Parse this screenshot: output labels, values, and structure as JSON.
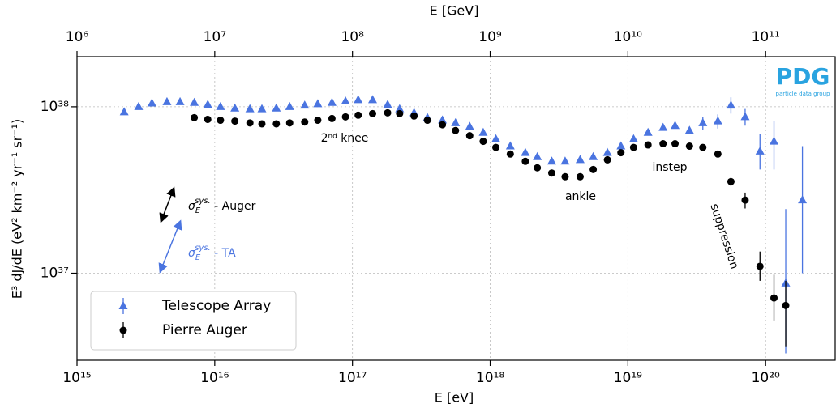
{
  "chart_data": {
    "type": "scatter",
    "xlabel": "E [eV]",
    "x2label": "E [GeV]",
    "ylabel": "E³ dJ/dE (eV² km⁻² yr⁻¹ sr⁻¹)",
    "log_x": true,
    "log_y": true,
    "grid": true,
    "legend": "lower left",
    "xlim": [
      1000000000000000.0,
      3.2e+20
    ],
    "x2lim": [
      1000000.0,
      320000000000.0
    ],
    "ylim": [
      3e+36,
      2e+38
    ],
    "xticks": [
      {
        "value": 1000000000000000.0,
        "label": "10¹⁵"
      },
      {
        "value": 1e+16,
        "label": "10¹⁶"
      },
      {
        "value": 1e+17,
        "label": "10¹⁷"
      },
      {
        "value": 1e+18,
        "label": "10¹⁸"
      },
      {
        "value": 1e+19,
        "label": "10¹⁹"
      },
      {
        "value": 1e+20,
        "label": "10²⁰"
      }
    ],
    "x2ticks": [
      {
        "value": 1000000.0,
        "label": "10⁶"
      },
      {
        "value": 10000000.0,
        "label": "10⁷"
      },
      {
        "value": 100000000.0,
        "label": "10⁸"
      },
      {
        "value": 1000000000.0,
        "label": "10⁹"
      },
      {
        "value": 10000000000.0,
        "label": "10¹⁰"
      },
      {
        "value": 100000000000.0,
        "label": "10¹¹"
      }
    ],
    "yticks": [
      {
        "value": 1e+37,
        "label": "10³⁷"
      },
      {
        "value": 1e+38,
        "label": "10³⁸"
      }
    ],
    "series": [
      {
        "name": "Telescope Array",
        "color": "#4a74e0",
        "marker": "triangle",
        "x": [
          2200000000000000.0,
          2800000000000000.0,
          3500000000000000.0,
          4500000000000000.0,
          5600000000000000.0,
          7100000000000000.0,
          8900000000000000.0,
          1.1e+16,
          1.4e+16,
          1.8e+16,
          2.2e+16,
          2.8e+16,
          3.5e+16,
          4.5e+16,
          5.6e+16,
          7.1e+16,
          8.9e+16,
          1.1e+17,
          1.4e+17,
          1.8e+17,
          2.2e+17,
          2.8e+17,
          3.5e+17,
          4.5e+17,
          5.6e+17,
          7.1e+17,
          8.9e+17,
          1.1e+18,
          1.4e+18,
          1.8e+18,
          2.2e+18,
          2.8e+18,
          3.5e+18,
          4.5e+18,
          5.6e+18,
          7.1e+18,
          8.9e+18,
          1.1e+19,
          1.4e+19,
          1.8e+19,
          2.2e+19,
          2.8e+19,
          3.5e+19,
          4.5e+19,
          5.6e+19,
          7.1e+19,
          9.1e+19,
          1.15e+20,
          1.4e+20,
          1.85e+20
        ],
        "values": [
          9.3e+37,
          1e+38,
          1.05e+38,
          1.07e+38,
          1.07e+38,
          1.06e+38,
          1.03e+38,
          1e+38,
          9.8e+37,
          9.7e+37,
          9.7e+37,
          9.8e+37,
          1e+38,
          1.02e+38,
          1.04e+38,
          1.06e+38,
          1.08e+38,
          1.1e+38,
          1.1e+38,
          1.03e+38,
          9.7e+37,
          9.2e+37,
          8.6e+37,
          8.3e+37,
          8e+37,
          7.6e+37,
          7e+37,
          6.4e+37,
          5.8e+37,
          5.3e+37,
          5e+37,
          4.7e+37,
          4.7e+37,
          4.8e+37,
          5e+37,
          5.3e+37,
          5.8e+37,
          6.4e+37,
          7e+37,
          7.5e+37,
          7.7e+37,
          7.2e+37,
          8e+37,
          8.2e+37,
          1.02e+38,
          8.7e+37,
          5.4e+37,
          6.2e+37,
          8.7e+36,
          2.75e+37
        ],
        "err_lower": [
          null,
          null,
          null,
          null,
          null,
          null,
          null,
          null,
          null,
          null,
          null,
          null,
          null,
          null,
          null,
          null,
          null,
          null,
          null,
          null,
          null,
          null,
          null,
          null,
          null,
          null,
          null,
          null,
          null,
          null,
          null,
          null,
          null,
          null,
          null,
          null,
          null,
          null,
          null,
          null,
          null,
          null,
          7.3e+37,
          7.4e+37,
          9.1e+37,
          7.7e+37,
          4.2e+37,
          4.2e+37,
          3.3e+36,
          1e+37
        ],
        "err_upper": [
          null,
          null,
          null,
          null,
          null,
          null,
          null,
          null,
          null,
          null,
          null,
          null,
          null,
          null,
          null,
          null,
          null,
          null,
          null,
          null,
          null,
          null,
          null,
          null,
          null,
          null,
          null,
          null,
          null,
          null,
          null,
          null,
          null,
          null,
          null,
          null,
          null,
          null,
          null,
          null,
          null,
          null,
          8.7e+37,
          9e+37,
          1.14e+38,
          9.7e+37,
          6.9e+37,
          8.2e+37,
          2.43e+37,
          5.8e+37
        ]
      },
      {
        "name": "Pierre Auger",
        "color": "#000000",
        "marker": "circle",
        "x": [
          7100000000000000.0,
          8900000000000000.0,
          1.1e+16,
          1.4e+16,
          1.8e+16,
          2.2e+16,
          2.8e+16,
          3.5e+16,
          4.5e+16,
          5.6e+16,
          7.1e+16,
          8.9e+16,
          1.1e+17,
          1.4e+17,
          1.8e+17,
          2.2e+17,
          2.8e+17,
          3.5e+17,
          4.5e+17,
          5.6e+17,
          7.1e+17,
          8.9e+17,
          1.1e+18,
          1.4e+18,
          1.8e+18,
          2.2e+18,
          2.8e+18,
          3.5e+18,
          4.5e+18,
          5.6e+18,
          7.1e+18,
          8.9e+18,
          1.1e+19,
          1.4e+19,
          1.8e+19,
          2.2e+19,
          2.8e+19,
          3.5e+19,
          4.5e+19,
          5.6e+19,
          7.1e+19,
          9.1e+19,
          1.15e+20,
          1.4e+20
        ],
        "values": [
          8.6e+37,
          8.4e+37,
          8.3e+37,
          8.2e+37,
          8e+37,
          7.9e+37,
          7.9e+37,
          8e+37,
          8.1e+37,
          8.3e+37,
          8.5e+37,
          8.7e+37,
          8.9e+37,
          9.1e+37,
          9.2e+37,
          9.1e+37,
          8.8e+37,
          8.3e+37,
          7.8e+37,
          7.2e+37,
          6.7e+37,
          6.2e+37,
          5.7e+37,
          5.2e+37,
          4.7e+37,
          4.3e+37,
          4e+37,
          3.8e+37,
          3.8e+37,
          4.2e+37,
          4.8e+37,
          5.3e+37,
          5.7e+37,
          5.9e+37,
          6e+37,
          6e+37,
          5.8e+37,
          5.7e+37,
          5.2e+37,
          3.55e+37,
          2.75e+37,
          1.1e+37,
          7.1e+36,
          6.4e+36
        ],
        "err_lower": [
          null,
          null,
          null,
          null,
          null,
          null,
          null,
          null,
          null,
          null,
          null,
          null,
          null,
          null,
          null,
          null,
          null,
          null,
          null,
          null,
          null,
          null,
          null,
          null,
          null,
          null,
          null,
          null,
          null,
          null,
          null,
          null,
          null,
          null,
          null,
          null,
          null,
          null,
          null,
          3.35e+37,
          2.45e+37,
          9e+36,
          5.2e+36,
          3.6e+36
        ],
        "err_upper": [
          null,
          null,
          null,
          null,
          null,
          null,
          null,
          null,
          null,
          null,
          null,
          null,
          null,
          null,
          null,
          null,
          null,
          null,
          null,
          null,
          null,
          null,
          null,
          null,
          null,
          null,
          null,
          null,
          null,
          null,
          null,
          null,
          null,
          null,
          null,
          null,
          null,
          null,
          null,
          3.75e+37,
          3.05e+37,
          1.35e+37,
          9.8e+36,
          9e+36
        ]
      }
    ],
    "annotations": [
      {
        "text": "2ⁿᵈ knee"
      },
      {
        "text": "ankle"
      },
      {
        "text": "instep"
      },
      {
        "text": "suppression"
      }
    ],
    "systematics": [
      {
        "symbol": "σ",
        "sub": "E",
        "sup": "sys.",
        "text": " - Auger"
      },
      {
        "symbol": "σ",
        "sub": "E",
        "sup": "sys.",
        "text": " - TA"
      }
    ],
    "logo": {
      "text": "PDG",
      "subtitle": "particle data group"
    }
  }
}
